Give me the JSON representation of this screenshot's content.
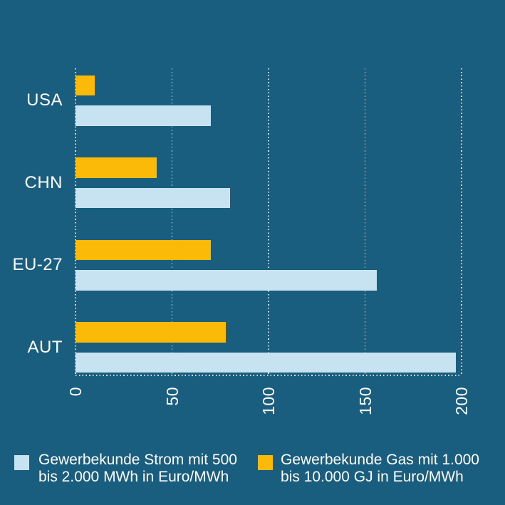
{
  "chart_data": {
    "type": "bar",
    "orientation": "horizontal",
    "title": "",
    "categories": [
      "USA",
      "CHN",
      "EU-27",
      "AUT"
    ],
    "series": [
      {
        "name": "Gewerbekunde Strom mit 500 bis 2.000 MWh in Euro/MWh",
        "key": "strom",
        "color": "#C7E3F2",
        "values": [
          70,
          80,
          156,
          197
        ]
      },
      {
        "name": "Gewerbekunde Gas mit 1.000 bis 10.000 GJ in Euro/MWh",
        "key": "gas",
        "color": "#FBBA07",
        "values": [
          10,
          42,
          70,
          78
        ]
      }
    ],
    "xlim": [
      0,
      200
    ],
    "xticks": [
      0,
      50,
      100,
      150,
      200
    ],
    "xtick_labels": [
      "0",
      "50",
      "100",
      "150",
      "200"
    ],
    "grid": true,
    "grid_style": "dotted",
    "legend_position": "bottom",
    "bar_order_within_group": [
      "gas",
      "strom"
    ]
  },
  "legend": {
    "items": [
      {
        "key": "strom",
        "color": "#C7E3F2",
        "label_line1": "Gewerbekunde Strom mit 500",
        "label_line2": "bis 2.000 MWh in Euro/MWh"
      },
      {
        "key": "gas",
        "color": "#FBBA07",
        "label_line1": "Gewerbekunde Gas mit 1.000",
        "label_line2": "bis 10.000 GJ in Euro/MWh"
      }
    ]
  },
  "colors": {
    "background": "#1A5E7F",
    "strom_bar": "#C7E3F2",
    "gas_bar": "#FBBA07",
    "grid": "#FFFFFF",
    "text": "#FFFFFF"
  }
}
